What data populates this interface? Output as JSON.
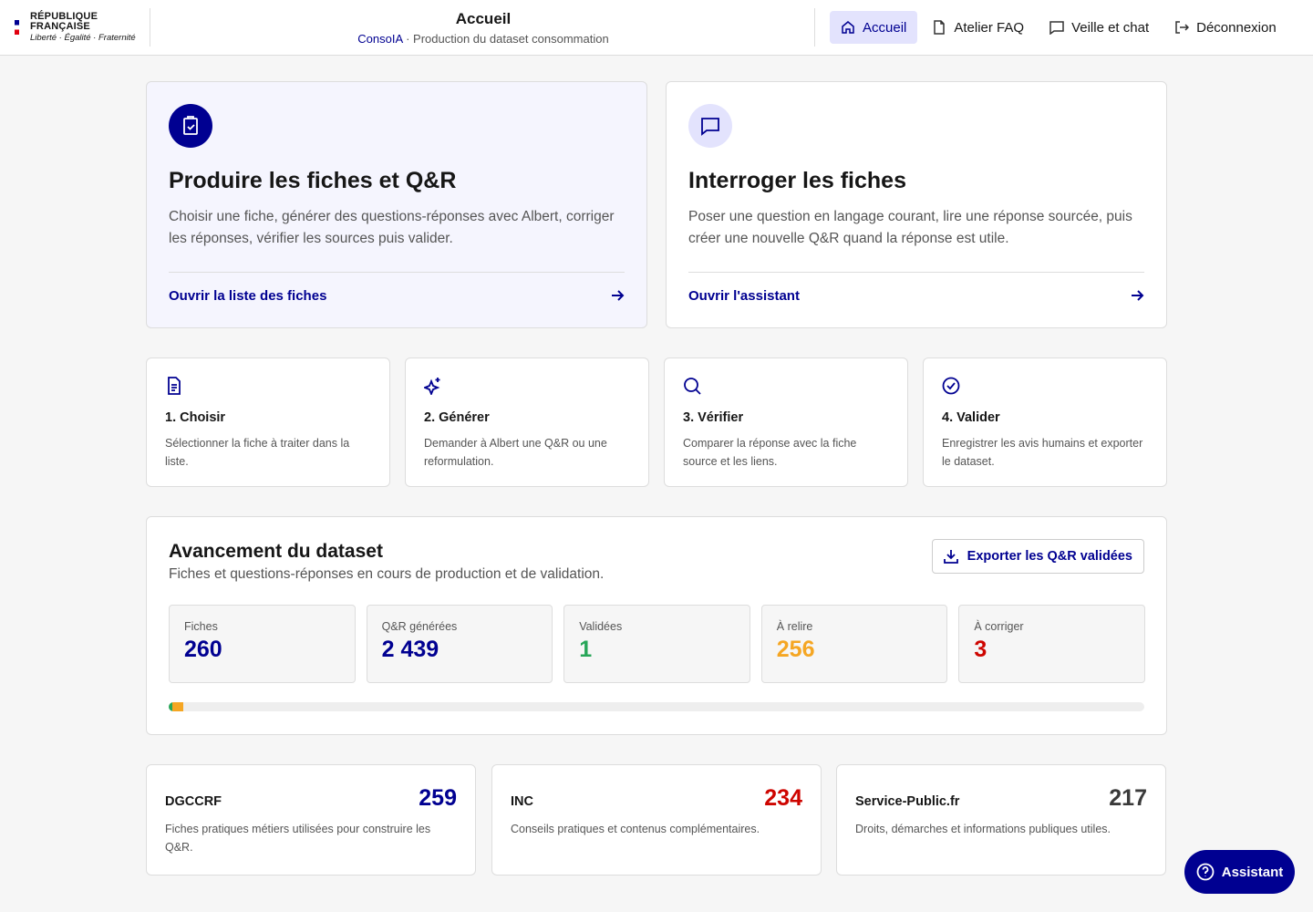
{
  "header": {
    "logo_line1": "RÉPUBLIQUE",
    "logo_line2": "FRANÇAISE",
    "motto": "Liberté · Égalité · Fraternité",
    "title": "Accueil",
    "breadcrumb_app": "ConsoIA",
    "breadcrumb_separator": "·",
    "breadcrumb_page": "Production du dataset consommation"
  },
  "nav": [
    "Accueil",
    "Atelier FAQ",
    "Veille et chat",
    "Déconnexion"
  ],
  "cards": [
    {
      "title": "Produire les fiches et Q&R",
      "description": "Choisir une fiche, générer des questions-réponses avec Albert, corriger les réponses, vérifier les sources puis valider.",
      "link": "Ouvrir la liste des fiches"
    },
    {
      "title": "Interroger les fiches",
      "description": "Poser une question en langage courant, lire une réponse sourcée, puis créer une nouvelle Q&R quand la réponse est utile.",
      "link": "Ouvrir l'assistant"
    }
  ],
  "steps": [
    {
      "title": "1. Choisir",
      "description": "Sélectionner la fiche à traiter dans la liste."
    },
    {
      "title": "2. Générer",
      "description": "Demander à Albert une Q&R ou une reformulation."
    },
    {
      "title": "3. Vérifier",
      "description": "Comparer la réponse avec la fiche source et les liens."
    },
    {
      "title": "4. Valider",
      "description": "Enregistrer les avis humains et exporter le dataset."
    }
  ],
  "progress": {
    "title": "Avancement du dataset",
    "subtitle": "Fiches et questions-réponses en cours de production et de validation.",
    "export_button": "Exporter les Q&R validées",
    "stats": [
      {
        "label": "Fiches",
        "value": "260"
      },
      {
        "label": "Q&R générées",
        "value": "2 439"
      },
      {
        "label": "Validées",
        "value": "1"
      },
      {
        "label": "À relire",
        "value": "256"
      },
      {
        "label": "À corriger",
        "value": "3"
      }
    ]
  },
  "sources": [
    {
      "name": "DGCCRF",
      "count": "259",
      "description": "Fiches pratiques métiers utilisées pour construire les Q&R."
    },
    {
      "name": "INC",
      "count": "234",
      "description": "Conseils pratiques et contenus complémentaires."
    },
    {
      "name": "Service-Public.fr",
      "count": "217",
      "description": "Droits, démarches et informations publiques utiles."
    }
  ],
  "assistant_button": "Assistant"
}
